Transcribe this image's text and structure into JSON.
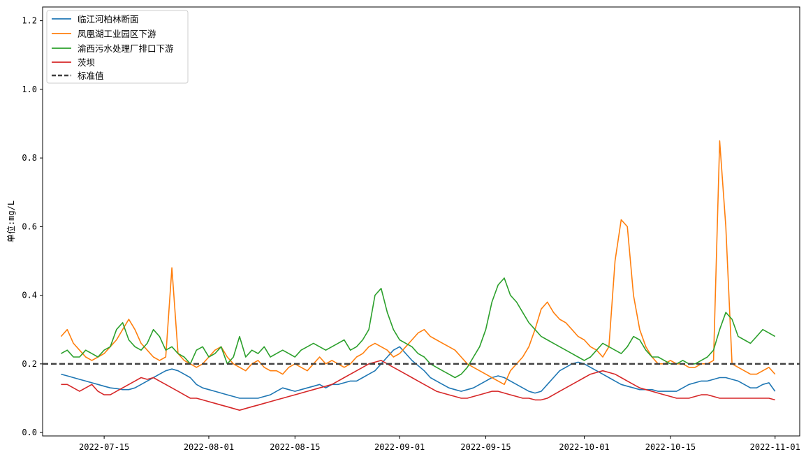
{
  "chart_data": {
    "type": "line",
    "title": "",
    "xlabel": "",
    "ylabel": "单位:mg/L",
    "x_start": "2022-07-08",
    "x_end": "2022-11-01",
    "xlim": [
      "2022-07-05",
      "2022-11-05"
    ],
    "ylim": [
      -0.01,
      1.24
    ],
    "x_ticks": [
      "2022-07-15",
      "2022-08-01",
      "2022-08-15",
      "2022-09-01",
      "2022-09-15",
      "2022-10-01",
      "2022-10-15",
      "2022-11-01"
    ],
    "y_ticks": [
      0.0,
      0.2,
      0.4,
      0.6,
      0.8,
      1.0,
      1.2
    ],
    "y_tick_labels": [
      "0.0",
      "0.2",
      "0.4",
      "0.6",
      "0.8",
      "1.0",
      "1.2"
    ],
    "grid": false,
    "legend_position": "top-left",
    "reference_line": {
      "name": "标准值",
      "value": 0.2,
      "style": "dashed",
      "color": "#404040"
    },
    "series": [
      {
        "name": "临江河柏林断面",
        "color": "#1f77b4",
        "values": [
          0.17,
          0.165,
          0.16,
          0.155,
          0.15,
          0.145,
          0.14,
          0.135,
          0.13,
          0.128,
          0.125,
          0.125,
          0.13,
          0.14,
          0.15,
          0.16,
          0.17,
          0.18,
          0.185,
          0.18,
          0.17,
          0.16,
          0.14,
          0.13,
          0.125,
          0.12,
          0.115,
          0.11,
          0.105,
          0.1,
          0.1,
          0.1,
          0.1,
          0.105,
          0.11,
          0.12,
          0.13,
          0.125,
          0.12,
          0.125,
          0.13,
          0.135,
          0.14,
          0.13,
          0.14,
          0.14,
          0.145,
          0.15,
          0.15,
          0.16,
          0.17,
          0.18,
          0.2,
          0.22,
          0.24,
          0.25,
          0.23,
          0.21,
          0.195,
          0.18,
          0.16,
          0.15,
          0.14,
          0.13,
          0.125,
          0.12,
          0.125,
          0.13,
          0.14,
          0.15,
          0.16,
          0.165,
          0.16,
          0.15,
          0.14,
          0.13,
          0.12,
          0.115,
          0.12,
          0.14,
          0.16,
          0.18,
          0.19,
          0.2,
          0.205,
          0.2,
          0.19,
          0.18,
          0.17,
          0.16,
          0.15,
          0.14,
          0.135,
          0.13,
          0.125,
          0.125,
          0.125,
          0.12,
          0.12,
          0.12,
          0.12,
          0.13,
          0.14,
          0.145,
          0.15,
          0.15,
          0.155,
          0.16,
          0.16,
          0.155,
          0.15,
          0.14,
          0.13,
          0.13,
          0.14,
          0.145,
          0.12
        ]
      },
      {
        "name": "凤凰湖工业园区下游",
        "color": "#ff7f0e",
        "values": [
          0.28,
          0.3,
          0.26,
          0.24,
          0.22,
          0.21,
          0.22,
          0.23,
          0.25,
          0.27,
          0.3,
          0.33,
          0.3,
          0.26,
          0.24,
          0.22,
          0.21,
          0.22,
          0.48,
          0.23,
          0.21,
          0.2,
          0.19,
          0.2,
          0.22,
          0.24,
          0.25,
          0.22,
          0.2,
          0.19,
          0.18,
          0.2,
          0.21,
          0.19,
          0.18,
          0.18,
          0.17,
          0.19,
          0.2,
          0.19,
          0.18,
          0.2,
          0.22,
          0.2,
          0.21,
          0.2,
          0.19,
          0.2,
          0.22,
          0.23,
          0.25,
          0.26,
          0.25,
          0.24,
          0.22,
          0.23,
          0.25,
          0.27,
          0.29,
          0.3,
          0.28,
          0.27,
          0.26,
          0.25,
          0.24,
          0.22,
          0.2,
          0.19,
          0.18,
          0.17,
          0.16,
          0.15,
          0.14,
          0.18,
          0.2,
          0.22,
          0.25,
          0.3,
          0.36,
          0.38,
          0.35,
          0.33,
          0.32,
          0.3,
          0.28,
          0.27,
          0.25,
          0.24,
          0.22,
          0.25,
          0.5,
          0.62,
          0.6,
          0.4,
          0.3,
          0.25,
          0.22,
          0.2,
          0.2,
          0.21,
          0.2,
          0.2,
          0.19,
          0.19,
          0.2,
          0.2,
          0.21,
          0.85,
          0.6,
          0.2,
          0.19,
          0.18,
          0.17,
          0.17,
          0.18,
          0.19,
          0.17
        ]
      },
      {
        "name": "渝西污水处理厂排口下游",
        "color": "#2ca02c",
        "values": [
          0.23,
          0.24,
          0.22,
          0.22,
          0.24,
          0.23,
          0.22,
          0.24,
          0.25,
          0.3,
          0.32,
          0.27,
          0.25,
          0.24,
          0.26,
          0.3,
          0.28,
          0.24,
          0.25,
          0.23,
          0.22,
          0.2,
          0.24,
          0.25,
          0.22,
          0.23,
          0.25,
          0.2,
          0.22,
          0.28,
          0.22,
          0.24,
          0.23,
          0.25,
          0.22,
          0.23,
          0.24,
          0.23,
          0.22,
          0.24,
          0.25,
          0.26,
          0.25,
          0.24,
          0.25,
          0.26,
          0.27,
          0.24,
          0.25,
          0.27,
          0.3,
          0.4,
          0.42,
          0.35,
          0.3,
          0.27,
          0.26,
          0.25,
          0.23,
          0.22,
          0.2,
          0.19,
          0.18,
          0.17,
          0.16,
          0.17,
          0.19,
          0.22,
          0.25,
          0.3,
          0.38,
          0.43,
          0.45,
          0.4,
          0.38,
          0.35,
          0.32,
          0.3,
          0.28,
          0.27,
          0.26,
          0.25,
          0.24,
          0.23,
          0.22,
          0.21,
          0.22,
          0.24,
          0.26,
          0.25,
          0.24,
          0.23,
          0.25,
          0.28,
          0.27,
          0.24,
          0.22,
          0.22,
          0.21,
          0.2,
          0.2,
          0.21,
          0.2,
          0.2,
          0.21,
          0.22,
          0.24,
          0.3,
          0.35,
          0.33,
          0.28,
          0.27,
          0.26,
          0.28,
          0.3,
          0.29,
          0.28
        ]
      },
      {
        "name": "茨坝",
        "color": "#d62728",
        "values": [
          0.14,
          0.14,
          0.13,
          0.12,
          0.13,
          0.14,
          0.12,
          0.11,
          0.11,
          0.12,
          0.13,
          0.14,
          0.15,
          0.16,
          0.155,
          0.16,
          0.15,
          0.14,
          0.13,
          0.12,
          0.11,
          0.1,
          0.1,
          0.095,
          0.09,
          0.085,
          0.08,
          0.075,
          0.07,
          0.065,
          0.07,
          0.075,
          0.08,
          0.085,
          0.09,
          0.095,
          0.1,
          0.105,
          0.11,
          0.115,
          0.12,
          0.125,
          0.13,
          0.135,
          0.14,
          0.15,
          0.16,
          0.17,
          0.18,
          0.19,
          0.2,
          0.205,
          0.21,
          0.2,
          0.19,
          0.18,
          0.17,
          0.16,
          0.15,
          0.14,
          0.13,
          0.12,
          0.115,
          0.11,
          0.105,
          0.1,
          0.1,
          0.105,
          0.11,
          0.115,
          0.12,
          0.12,
          0.115,
          0.11,
          0.105,
          0.1,
          0.1,
          0.095,
          0.095,
          0.1,
          0.11,
          0.12,
          0.13,
          0.14,
          0.15,
          0.16,
          0.17,
          0.175,
          0.18,
          0.175,
          0.17,
          0.16,
          0.15,
          0.14,
          0.13,
          0.125,
          0.12,
          0.115,
          0.11,
          0.105,
          0.1,
          0.1,
          0.1,
          0.105,
          0.11,
          0.11,
          0.105,
          0.1,
          0.1,
          0.1,
          0.1,
          0.1,
          0.1,
          0.1,
          0.1,
          0.1,
          0.095
        ]
      }
    ]
  }
}
